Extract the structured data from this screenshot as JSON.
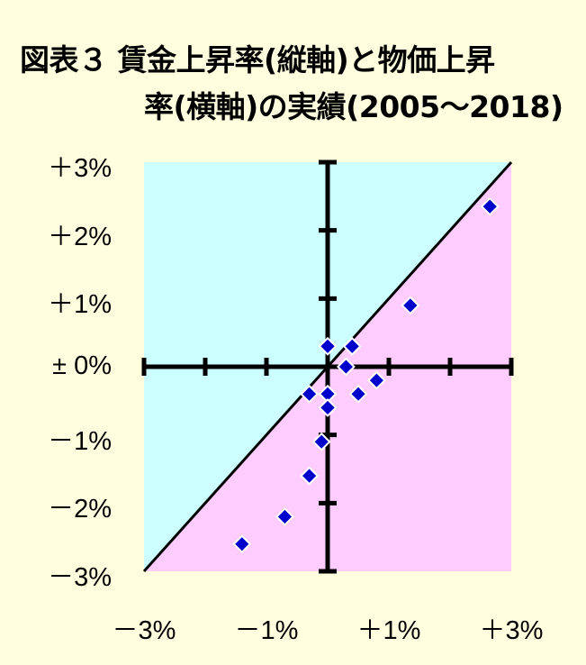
{
  "header": {
    "title_line1": "図表３ 賃金上昇率(縦軸)と物価上昇",
    "title_line2": "率(横軸)の実績(2005～2018)"
  },
  "chart_data": {
    "type": "scatter",
    "title": "図表３ 賃金上昇率(縦軸)と物価上昇率(横軸)の実績(2005～2018)",
    "xlim": [
      -3,
      3
    ],
    "ylim": [
      -3,
      3
    ],
    "x_tick_labels": [
      {
        "value": -3,
        "label": "－3%"
      },
      {
        "value": -1,
        "label": "－1%"
      },
      {
        "value": 1,
        "label": "＋1%"
      },
      {
        "value": 3,
        "label": "＋3%"
      }
    ],
    "y_tick_labels": [
      {
        "value": 3,
        "label": "＋3%"
      },
      {
        "value": 2,
        "label": "＋2%"
      },
      {
        "value": 1,
        "label": "＋1%"
      },
      {
        "value": 0,
        "label": "± 0%"
      },
      {
        "value": -1,
        "label": "－1%"
      },
      {
        "value": -2,
        "label": "－2%"
      },
      {
        "value": -3,
        "label": "－3%"
      }
    ],
    "reference_line": {
      "from": [
        -3,
        -3
      ],
      "to": [
        3,
        3
      ]
    },
    "regions": {
      "above_diagonal_color": "#ccffff",
      "below_diagonal_color": "#ffccff"
    },
    "marker_color": "#0000cc",
    "points": [
      {
        "x": 2.65,
        "y": 2.35
      },
      {
        "x": 1.35,
        "y": 0.9
      },
      {
        "x": 0.0,
        "y": 0.3
      },
      {
        "x": 0.4,
        "y": 0.3
      },
      {
        "x": 0.3,
        "y": 0.0
      },
      {
        "x": 0.8,
        "y": -0.2
      },
      {
        "x": 0.5,
        "y": -0.4
      },
      {
        "x": -0.3,
        "y": -0.4
      },
      {
        "x": 0.0,
        "y": -0.4
      },
      {
        "x": 0.0,
        "y": -0.6
      },
      {
        "x": -0.1,
        "y": -1.1
      },
      {
        "x": -0.3,
        "y": -1.6
      },
      {
        "x": -0.7,
        "y": -2.2
      },
      {
        "x": -1.4,
        "y": -2.6
      }
    ]
  }
}
